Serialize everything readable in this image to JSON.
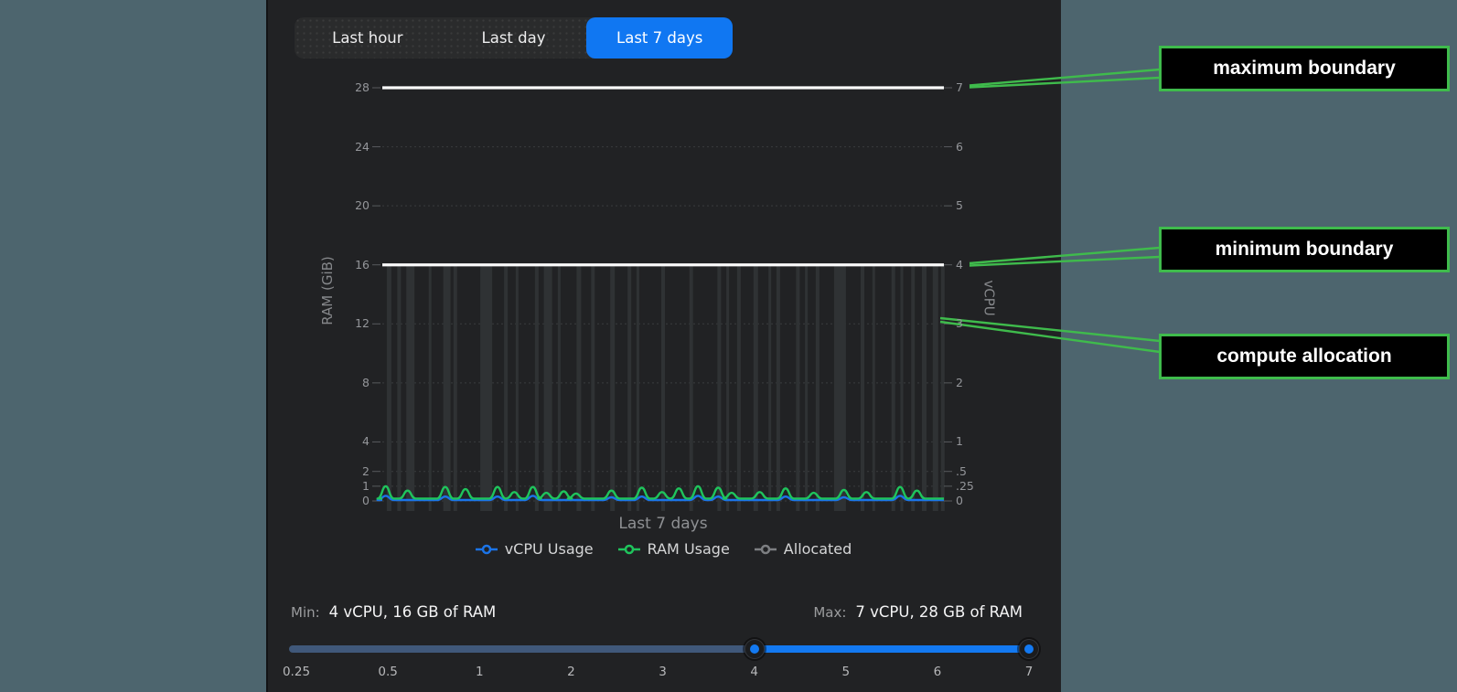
{
  "tabs": {
    "items": [
      {
        "label": "Last hour",
        "active": false
      },
      {
        "label": "Last day",
        "active": false
      },
      {
        "label": "Last 7 days",
        "active": true
      }
    ]
  },
  "chart_data": {
    "type": "line",
    "x_label": "Last 7 days",
    "left_axis": {
      "title": "RAM (GiB)",
      "max": 28,
      "ticks": [
        28,
        24,
        20,
        16,
        12,
        8,
        4,
        2,
        1,
        0
      ]
    },
    "right_axis": {
      "title": "vCPU",
      "max": 7,
      "ticks": [
        "7",
        "6",
        "5",
        "4",
        "3",
        "2",
        "1",
        ".5",
        ".25",
        "0"
      ]
    },
    "gridline_values_gib": [
      24,
      20,
      12,
      8,
      4,
      2,
      1,
      0
    ],
    "boundaries": {
      "maximum": {
        "vcpu": 7,
        "ram_gib": 28
      },
      "minimum": {
        "vcpu": 4,
        "ram_gib": 16
      }
    },
    "series": [
      {
        "name": "vCPU Usage",
        "color": "#1b74e8",
        "baseline_gib": 0.06,
        "bumps": [
          [
            0.006,
            0.35
          ],
          [
            0.112,
            0.3
          ],
          [
            0.205,
            0.3
          ],
          [
            0.268,
            0.35
          ],
          [
            0.408,
            0.25
          ],
          [
            0.462,
            0.3
          ],
          [
            0.562,
            0.35
          ],
          [
            0.598,
            0.3
          ],
          [
            0.718,
            0.3
          ],
          [
            0.822,
            0.25
          ],
          [
            0.922,
            0.35
          ]
        ]
      },
      {
        "name": "RAM Usage",
        "color": "#1fc45c",
        "baseline_gib": 0.16,
        "bumps": [
          [
            0.006,
            1.0
          ],
          [
            0.045,
            0.7
          ],
          [
            0.112,
            0.95
          ],
          [
            0.148,
            0.8
          ],
          [
            0.205,
            0.95
          ],
          [
            0.235,
            0.6
          ],
          [
            0.268,
            0.95
          ],
          [
            0.292,
            0.55
          ],
          [
            0.323,
            0.65
          ],
          [
            0.345,
            0.5
          ],
          [
            0.408,
            0.7
          ],
          [
            0.462,
            0.9
          ],
          [
            0.498,
            0.6
          ],
          [
            0.528,
            0.85
          ],
          [
            0.562,
            1.0
          ],
          [
            0.598,
            0.9
          ],
          [
            0.622,
            0.55
          ],
          [
            0.672,
            0.6
          ],
          [
            0.718,
            0.85
          ],
          [
            0.768,
            0.55
          ],
          [
            0.822,
            0.75
          ],
          [
            0.862,
            0.6
          ],
          [
            0.922,
            0.95
          ],
          [
            0.952,
            0.7
          ]
        ]
      },
      {
        "name": "Allocated",
        "color": "#7d7f82",
        "constant_gib": 16,
        "bars": [
          [
            0.012,
            5
          ],
          [
            0.03,
            4
          ],
          [
            0.05,
            9
          ],
          [
            0.085,
            3
          ],
          [
            0.115,
            8
          ],
          [
            0.13,
            4
          ],
          [
            0.185,
            13
          ],
          [
            0.22,
            4
          ],
          [
            0.24,
            3
          ],
          [
            0.275,
            4
          ],
          [
            0.295,
            9
          ],
          [
            0.315,
            3
          ],
          [
            0.35,
            5
          ],
          [
            0.375,
            4
          ],
          [
            0.41,
            5
          ],
          [
            0.44,
            4
          ],
          [
            0.455,
            3
          ],
          [
            0.5,
            4
          ],
          [
            0.55,
            4
          ],
          [
            0.6,
            4
          ],
          [
            0.615,
            3
          ],
          [
            0.635,
            4
          ],
          [
            0.665,
            5
          ],
          [
            0.69,
            3
          ],
          [
            0.705,
            4
          ],
          [
            0.74,
            4
          ],
          [
            0.755,
            3
          ],
          [
            0.775,
            4
          ],
          [
            0.815,
            13
          ],
          [
            0.855,
            4
          ],
          [
            0.875,
            3
          ],
          [
            0.91,
            4
          ],
          [
            0.925,
            3
          ],
          [
            0.945,
            4
          ],
          [
            0.965,
            5
          ],
          [
            0.985,
            6
          ],
          [
            0.998,
            4
          ]
        ]
      }
    ]
  },
  "legend": {
    "items": [
      {
        "label": "vCPU Usage",
        "color": "#1b74e8"
      },
      {
        "label": "RAM Usage",
        "color": "#1fc45c"
      },
      {
        "label": "Allocated",
        "color": "#7d7f82"
      }
    ]
  },
  "footer": {
    "min_label": "Min:",
    "min_value": "4 vCPU, 16 GB of RAM",
    "max_label": "Max:",
    "max_value": "7 vCPU, 28 GB of RAM"
  },
  "slider": {
    "tick_labels": [
      "0.25",
      "0.5",
      "1",
      "2",
      "3",
      "4",
      "5",
      "6",
      "7"
    ],
    "lower_value": "4",
    "upper_value": "7",
    "accent_color": "#1379f1",
    "inactive_color": "#40587a"
  },
  "annotations": {
    "accent_color": "#3fbb4c",
    "items": [
      {
        "label": "maximum boundary"
      },
      {
        "label": "minimum boundary"
      },
      {
        "label": "compute allocation"
      }
    ]
  }
}
